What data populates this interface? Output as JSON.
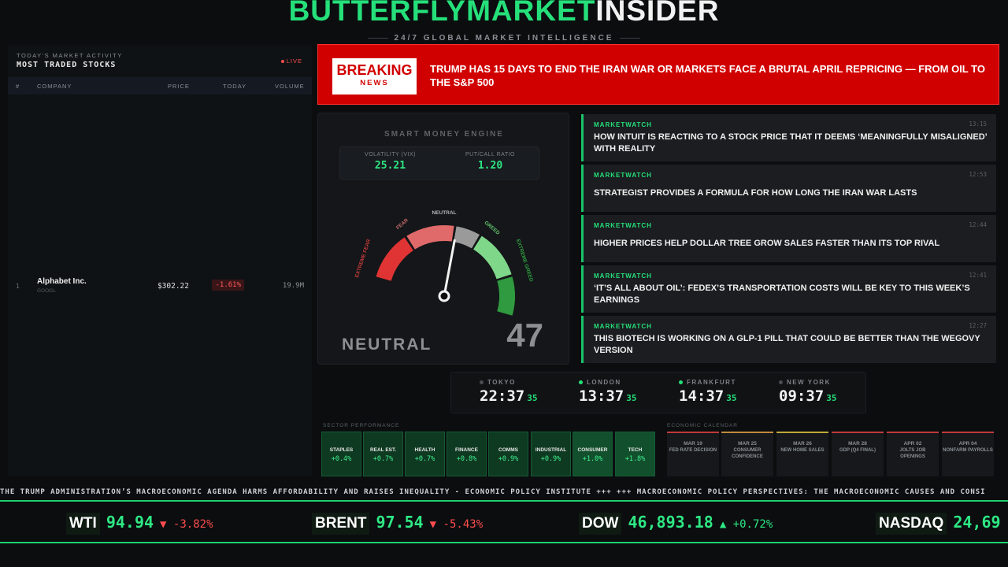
{
  "header": {
    "brand_green": "BUTTERFLYMARKET",
    "brand_white": "INSIDER",
    "tagline": "24/7 GLOBAL MARKET INTELLIGENCE"
  },
  "stocks_panel": {
    "kicker": "TODAY'S MARKET ACTIVITY",
    "title": "MOST TRADED STOCKS",
    "live_label": "LIVE",
    "columns": {
      "rank": "#",
      "company": "COMPANY",
      "price": "PRICE",
      "today": "TODAY",
      "volume": "VOLUME"
    },
    "rows": [
      {
        "rank": "1",
        "company": "Alphabet Inc.",
        "ticker": "GOOGL",
        "price": "$302.22",
        "change": "-1.61%",
        "volume": "19.9M"
      }
    ]
  },
  "breaking": {
    "badge_top": "BREAKING",
    "badge_bottom": "NEWS",
    "headline": "TRUMP HAS 15 DAYS TO END THE IRAN WAR OR MARKETS FACE A BRUTAL APRIL REPRICING — FROM OIL TO THE S&P 500"
  },
  "gauge": {
    "title": "SMART MONEY ENGINE",
    "vix_label": "VOLATILITY (VIX)",
    "vix_value": "25.21",
    "pc_label": "PUT/CALL RATIO",
    "pc_value": "1.20",
    "zone_labels": {
      "extreme_fear": "EXTREME FEAR",
      "fear": "FEAR",
      "neutral": "NEUTRAL",
      "greed": "GREED",
      "extreme_greed": "EXTREME GREED"
    },
    "sentiment": "NEUTRAL",
    "score": 47,
    "colors": {
      "extreme_fear": "#e03434",
      "fear": "#e06a6a",
      "neutral": "#9a9a9a",
      "greed": "#7fd88a",
      "extreme_greed": "#2f9a3f"
    }
  },
  "news": [
    {
      "source": "MARKETWATCH",
      "time": "13:15",
      "headline": "HOW INTUIT IS REACTING TO A STOCK PRICE THAT IT DEEMS ‘MEANINGFULLY MISALIGNED’ WITH REALITY"
    },
    {
      "source": "MARKETWATCH",
      "time": "12:53",
      "headline": "STRATEGIST PROVIDES A FORMULA FOR HOW LONG THE IRAN WAR LASTS"
    },
    {
      "source": "MARKETWATCH",
      "time": "12:44",
      "headline": "HIGHER PRICES HELP DOLLAR TREE GROW SALES FASTER THAN ITS TOP RIVAL"
    },
    {
      "source": "MARKETWATCH",
      "time": "12:41",
      "headline": "‘IT’S ALL ABOUT OIL’: FEDEX’S TRANSPORTATION COSTS WILL BE KEY TO THIS WEEK’S EARNINGS"
    },
    {
      "source": "MARKETWATCH",
      "time": "12:27",
      "headline": "THIS BIOTECH IS WORKING ON A GLP-1 PILL THAT COULD BE BETTER THAN THE WEGOVY VERSION"
    }
  ],
  "clocks": [
    {
      "city": "TOKYO",
      "hm": "22:37",
      "sec": "35",
      "open": false
    },
    {
      "city": "LONDON",
      "hm": "13:37",
      "sec": "35",
      "open": true
    },
    {
      "city": "FRANKFURT",
      "hm": "14:37",
      "sec": "35",
      "open": true
    },
    {
      "city": "NEW YORK",
      "hm": "09:37",
      "sec": "35",
      "open": false
    }
  ],
  "sectors": {
    "label": "SECTOR PERFORMANCE",
    "items": [
      {
        "name": "STAPLES",
        "value": "+0.4%"
      },
      {
        "name": "REAL EST.",
        "value": "+0.7%"
      },
      {
        "name": "HEALTH",
        "value": "+0.7%"
      },
      {
        "name": "FINANCE",
        "value": "+0.8%"
      },
      {
        "name": "COMMS",
        "value": "+0.9%"
      },
      {
        "name": "INDUSTRIAL",
        "value": "+0.9%"
      },
      {
        "name": "CONSUMER",
        "value": "+1.0%"
      },
      {
        "name": "TECH",
        "value": "+1.8%"
      }
    ]
  },
  "calendar": {
    "label": "ECONOMIC CALENDAR",
    "items": [
      {
        "date": "MAR 19",
        "event": "FED RATE DECISION"
      },
      {
        "date": "MAR 25",
        "event": "CONSUMER CONFIDENCE"
      },
      {
        "date": "MAR 26",
        "event": "NEW HOME SALES"
      },
      {
        "date": "MAR 28",
        "event": "GDP (Q4 FINAL)"
      },
      {
        "date": "APR 02",
        "event": "JOLTS JOB OPENINGS"
      },
      {
        "date": "APR 04",
        "event": "NONFARM PAYROLLS"
      }
    ]
  },
  "ticker": {
    "text": "THE TRUMP ADMINISTRATION’S MACROECONOMIC AGENDA HARMS AFFORDABILITY AND RAISES INEQUALITY - ECONOMIC POLICY INSTITUTE +++ +++ MACROECONOMIC POLICY PERSPECTIVES: THE MACROECONOMIC CAUSES AND CONSI"
  },
  "quotes": [
    {
      "name": "WTI",
      "value": "94.94",
      "arrow": "▼",
      "change": "-3.82%",
      "dir": "down"
    },
    {
      "name": "BRENT",
      "value": "97.54",
      "arrow": "▼",
      "change": "-5.43%",
      "dir": "down"
    },
    {
      "name": "DOW",
      "value": "46,893.18",
      "arrow": "▲",
      "change": "+0.72%",
      "dir": "up"
    },
    {
      "name": "NASDAQ",
      "value": "24,69",
      "arrow": "",
      "change": "",
      "dir": "up"
    }
  ]
}
